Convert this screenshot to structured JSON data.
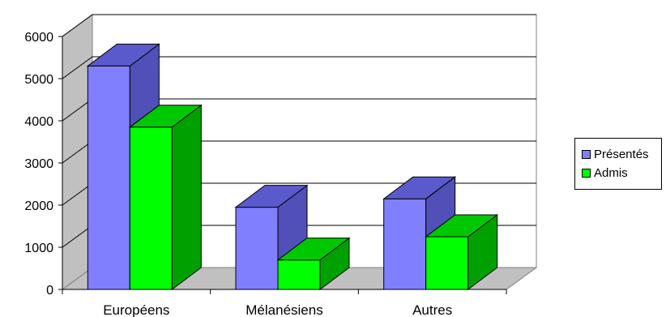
{
  "chart_data": {
    "type": "bar",
    "title": "",
    "xlabel": "",
    "ylabel": "",
    "categories": [
      "Européens",
      "Mélanésiens",
      "Autres"
    ],
    "series": [
      {
        "name": "Présentés",
        "values": [
          5300,
          1950,
          2150
        ],
        "color": "#8080ff",
        "side_color": "#5050b8",
        "top_color": "#5a5acc"
      },
      {
        "name": "Admis",
        "values": [
          3850,
          700,
          1250
        ],
        "color": "#00ff00",
        "side_color": "#00a000",
        "top_color": "#00c800"
      }
    ],
    "yticks": [
      "0",
      "1000",
      "2000",
      "3000",
      "4000",
      "5000",
      "6000"
    ],
    "ylim": [
      0,
      6000
    ],
    "grid": true,
    "legend_position": "right",
    "style": "3d-clustered-column"
  }
}
